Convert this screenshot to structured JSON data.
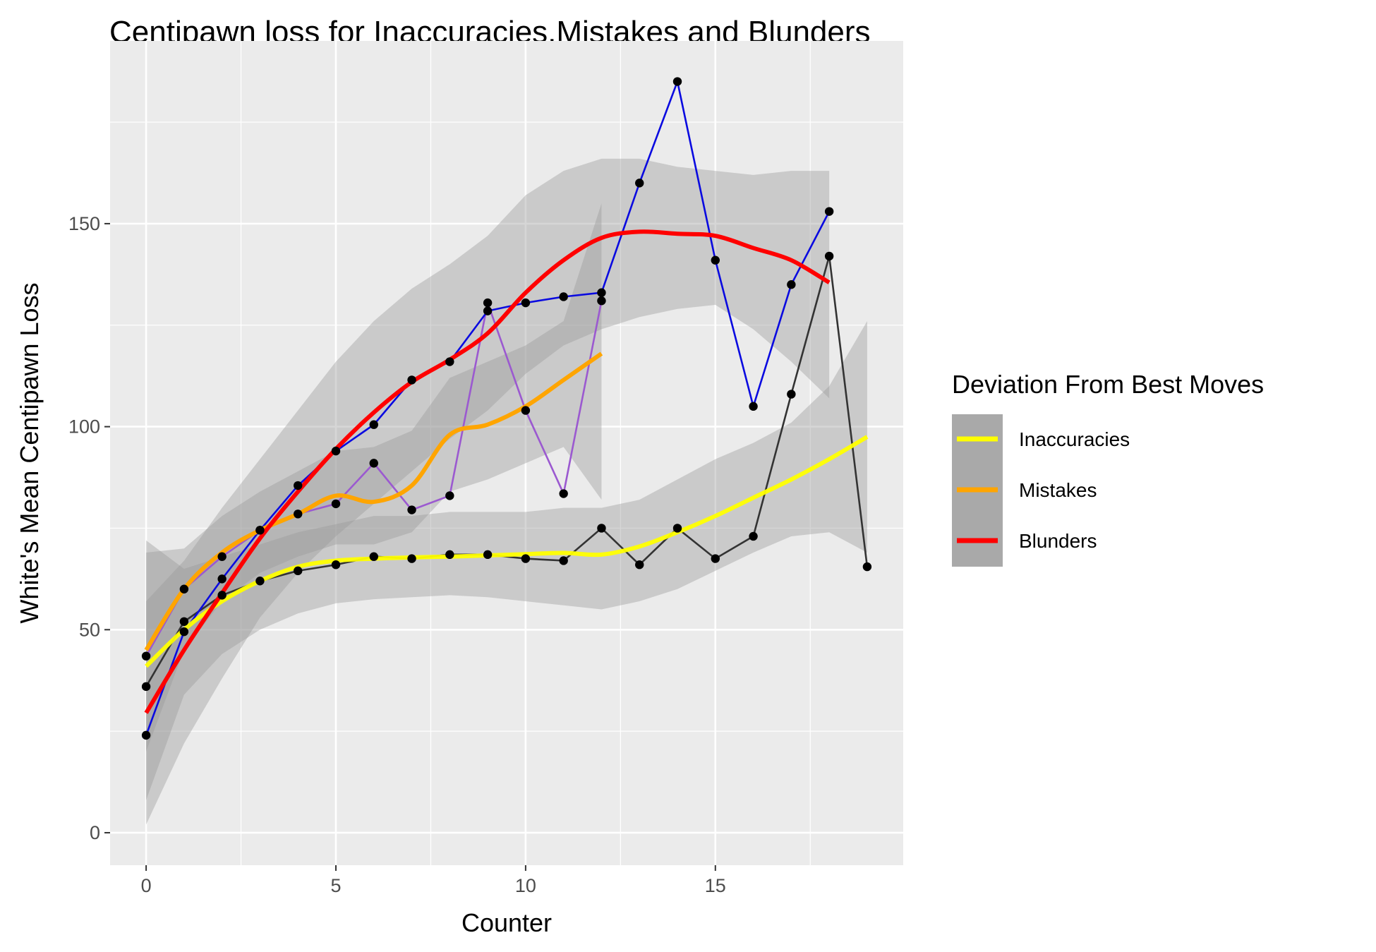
{
  "chart_data": {
    "type": "line",
    "title": "Centipawn loss for Inaccuracies,Mistakes and Blunders",
    "xlabel": "Counter",
    "ylabel": "White's Mean  Centipawn Loss",
    "xlim": [
      -0.95,
      19.95
    ],
    "ylim": [
      -8,
      195
    ],
    "x_ticks": [
      0,
      5,
      10,
      15
    ],
    "x_tick_labels": [
      "0",
      "5",
      "10",
      "15"
    ],
    "y_ticks": [
      0,
      50,
      100,
      150
    ],
    "y_tick_labels": [
      "0",
      "50",
      "100",
      "150"
    ],
    "grid": true,
    "panel_color": "#ebebeb",
    "grid_color": "#ffffff",
    "legend": {
      "title": "Deviation From Best Moves",
      "position": "right",
      "key_background": "#a9a9a9",
      "entries": [
        {
          "label": "Inaccuracies",
          "color": "#ffff00"
        },
        {
          "label": "Mistakes",
          "color": "#ffa500"
        },
        {
          "label": "Blunders",
          "color": "#ff0000"
        }
      ]
    },
    "series": [
      {
        "name": "Inaccuracies",
        "color": "#ffff00",
        "raw_line_color": "#333333",
        "x": [
          0,
          1,
          2,
          3,
          4,
          5,
          6,
          7,
          8,
          9,
          10,
          11,
          12,
          13,
          14,
          15,
          16,
          17,
          18,
          19
        ],
        "values": [
          36,
          52,
          58.5,
          62,
          64.5,
          66,
          68,
          67.5,
          68.5,
          68.5,
          67.5,
          67,
          75,
          66,
          75,
          67.5,
          73,
          108,
          142,
          65.5
        ],
        "smooth": [
          41,
          50,
          57,
          62,
          65.5,
          67,
          67.5,
          67.8,
          68,
          68.3,
          68.6,
          68.9,
          68.5,
          70.5,
          74,
          78,
          82.5,
          87,
          92,
          97.5
        ],
        "band_lower": [
          8,
          34,
          44,
          50,
          54,
          56.5,
          57.5,
          58,
          58.5,
          58,
          57,
          56,
          55,
          57,
          60,
          64.5,
          69,
          73,
          74,
          69
        ],
        "band_upper": [
          72,
          65,
          68,
          71,
          74,
          76,
          78,
          78,
          79,
          79,
          79,
          80,
          80,
          82,
          87,
          92,
          96,
          101,
          110,
          126
        ]
      },
      {
        "name": "Mistakes",
        "color": "#ffa500",
        "raw_line_color": "#9b59d0",
        "x": [
          0,
          1,
          2,
          3,
          4,
          5,
          6,
          7,
          8,
          9,
          10,
          11,
          12
        ],
        "values": [
          43.5,
          60,
          68,
          74.5,
          78.5,
          81,
          91,
          79.5,
          83,
          130.5,
          104,
          83.5,
          131
        ],
        "smooth": [
          45,
          60,
          69,
          74.5,
          78.5,
          83,
          81.5,
          85.5,
          98,
          100.5,
          105,
          111.5,
          118
        ],
        "band_lower": [
          20,
          45,
          57,
          64,
          68,
          71,
          71,
          74,
          84,
          87,
          91,
          95,
          82
        ],
        "band_upper": [
          69,
          70,
          78,
          84,
          89,
          94,
          95,
          99,
          112,
          116,
          120,
          126,
          155
        ]
      },
      {
        "name": "Blunders",
        "color": "#ff0000",
        "raw_line_color": "#0a0ae0",
        "x": [
          0,
          1,
          2,
          3,
          4,
          5,
          6,
          7,
          8,
          9,
          10,
          11,
          12,
          13,
          14,
          15,
          16,
          17,
          18
        ],
        "values": [
          24,
          49.5,
          62.5,
          74.5,
          85.5,
          94,
          100.5,
          111.5,
          116,
          128.5,
          130.5,
          132,
          133,
          160,
          185,
          141,
          105,
          135,
          153
        ],
        "smooth": [
          29.5,
          45,
          59,
          72.5,
          84,
          94.5,
          103.5,
          111,
          116.5,
          123,
          133,
          141,
          146.5,
          148,
          147.5,
          147,
          144,
          141,
          135.5
        ],
        "band_lower": [
          2,
          22,
          38,
          53,
          64,
          73,
          81,
          89,
          97,
          104,
          113,
          120,
          124,
          127,
          129,
          130,
          124,
          116,
          107
        ],
        "band_upper": [
          57,
          67,
          80,
          92,
          104,
          116,
          126,
          134,
          140,
          147,
          157,
          163,
          166,
          166,
          164,
          163,
          162,
          163,
          163
        ]
      }
    ]
  }
}
